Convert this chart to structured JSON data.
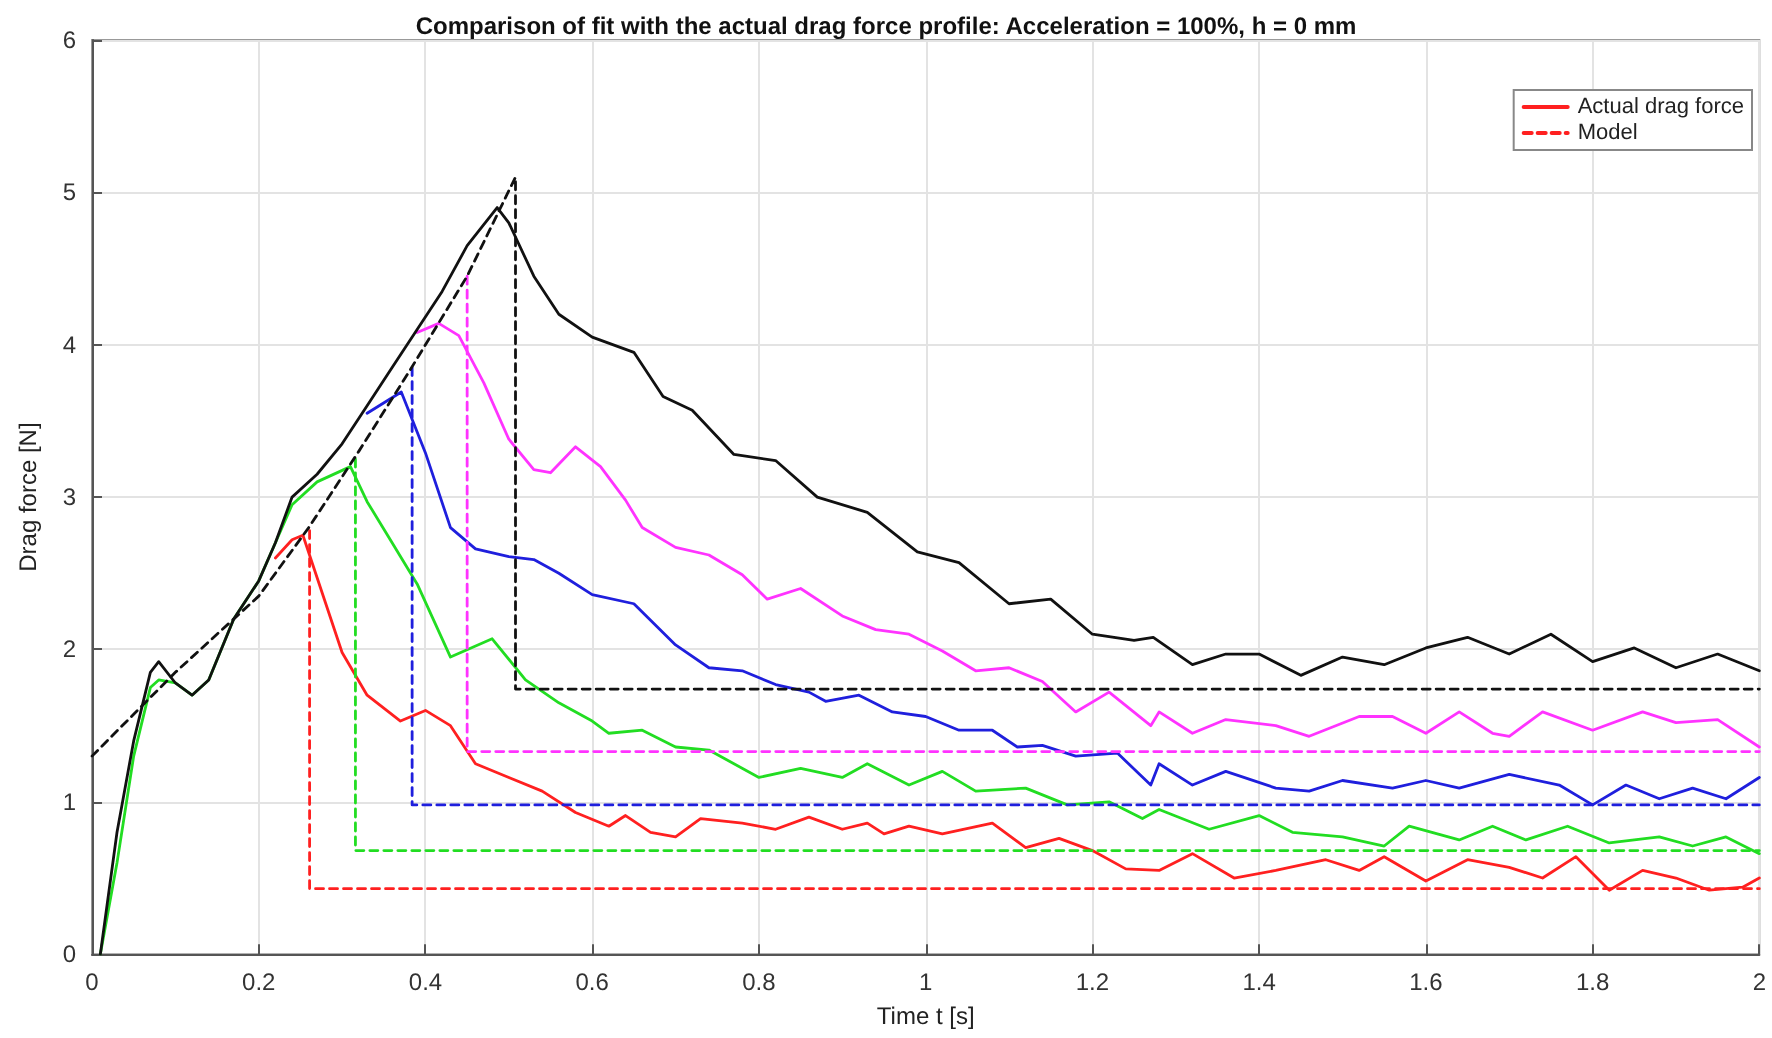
{
  "chart_data": {
    "type": "line",
    "title": "Comparison of fit with the actual drag force profile: Acceleration = 100%, h = 0 mm",
    "xlabel": "Time t [s]",
    "ylabel": "Drag force [N]",
    "xlim": [
      0,
      2
    ],
    "xticks": [
      0,
      0.2,
      0.4,
      0.6,
      0.8,
      1,
      1.2,
      1.4,
      1.6,
      1.8,
      2
    ],
    "ylim": [
      0,
      6
    ],
    "yticks": [
      0,
      1,
      2,
      3,
      4,
      5,
      6
    ],
    "grid": true,
    "legend": "top right",
    "marker": "none",
    "series": [
      {
        "name": "Actual drag force",
        "color": "#ff2020",
        "line_style": "solid",
        "x": [
          0.22,
          0.24,
          0.253,
          0.3,
          0.33,
          0.37,
          0.4,
          0.43,
          0.46,
          0.5,
          0.54,
          0.58,
          0.62,
          0.64,
          0.67,
          0.7,
          0.73,
          0.78,
          0.82,
          0.86,
          0.9,
          0.93,
          0.95,
          0.98,
          1.02,
          1.08,
          1.12,
          1.16,
          1.2,
          1.24,
          1.28,
          1.32,
          1.37,
          1.42,
          1.48,
          1.52,
          1.55,
          1.6,
          1.65,
          1.7,
          1.74,
          1.78,
          1.82,
          1.86,
          1.9,
          1.94,
          1.98,
          2.0
        ],
        "values": [
          2.6,
          2.72,
          2.75,
          1.98,
          1.7,
          1.53,
          1.6,
          1.5,
          1.25,
          1.16,
          1.07,
          0.93,
          0.84,
          0.91,
          0.8,
          0.77,
          0.89,
          0.86,
          0.82,
          0.9,
          0.82,
          0.86,
          0.79,
          0.84,
          0.79,
          0.86,
          0.7,
          0.76,
          0.68,
          0.56,
          0.55,
          0.66,
          0.5,
          0.55,
          0.62,
          0.55,
          0.64,
          0.48,
          0.62,
          0.57,
          0.5,
          0.64,
          0.42,
          0.55,
          0.5,
          0.42,
          0.44,
          0.5
        ]
      },
      {
        "name": "Model",
        "color": "#ff2020",
        "line_style": "dashed",
        "x": [
          0.261,
          0.261,
          2
        ],
        "values": [
          2.78,
          0.43,
          0.43
        ]
      },
      {
        "color": "#22dd22",
        "line_style": "solid",
        "x": [
          0.01,
          0.03,
          0.05,
          0.07,
          0.08,
          0.1,
          0.12,
          0.14,
          0.17,
          0.2,
          0.22,
          0.24,
          0.27,
          0.31,
          0.33,
          0.36,
          0.39,
          0.43,
          0.48,
          0.52,
          0.56,
          0.6,
          0.62,
          0.66,
          0.7,
          0.74,
          0.8,
          0.85,
          0.9,
          0.93,
          0.98,
          1.02,
          1.06,
          1.12,
          1.17,
          1.22,
          1.26,
          1.28,
          1.34,
          1.4,
          1.44,
          1.5,
          1.55,
          1.58,
          1.64,
          1.68,
          1.72,
          1.77,
          1.82,
          1.88,
          1.92,
          1.96,
          2.0
        ],
        "values": [
          0,
          0.6,
          1.3,
          1.75,
          1.8,
          1.78,
          1.7,
          1.8,
          2.2,
          2.45,
          2.7,
          2.95,
          3.1,
          3.2,
          2.97,
          2.7,
          2.43,
          1.95,
          2.07,
          1.8,
          1.65,
          1.53,
          1.45,
          1.47,
          1.36,
          1.34,
          1.16,
          1.22,
          1.16,
          1.25,
          1.11,
          1.2,
          1.07,
          1.09,
          0.98,
          1.0,
          0.89,
          0.95,
          0.82,
          0.91,
          0.8,
          0.77,
          0.71,
          0.84,
          0.75,
          0.84,
          0.75,
          0.84,
          0.73,
          0.77,
          0.71,
          0.77,
          0.66
        ]
      },
      {
        "color": "#22dd22",
        "line_style": "dashed",
        "x": [
          0.316,
          0.316,
          2
        ],
        "values": [
          3.25,
          0.68,
          0.68
        ]
      },
      {
        "color": "#1f1fdd",
        "line_style": "solid",
        "x": [
          0.33,
          0.371,
          0.4,
          0.43,
          0.46,
          0.5,
          0.53,
          0.56,
          0.6,
          0.65,
          0.7,
          0.74,
          0.78,
          0.82,
          0.86,
          0.88,
          0.92,
          0.96,
          1.0,
          1.04,
          1.08,
          1.11,
          1.14,
          1.18,
          1.23,
          1.27,
          1.28,
          1.32,
          1.36,
          1.42,
          1.46,
          1.5,
          1.56,
          1.6,
          1.64,
          1.7,
          1.76,
          1.8,
          1.84,
          1.88,
          1.92,
          1.96,
          2.0
        ],
        "values": [
          3.55,
          3.69,
          3.29,
          2.8,
          2.66,
          2.61,
          2.59,
          2.5,
          2.36,
          2.3,
          2.03,
          1.88,
          1.86,
          1.77,
          1.72,
          1.66,
          1.7,
          1.59,
          1.56,
          1.47,
          1.47,
          1.36,
          1.37,
          1.3,
          1.32,
          1.11,
          1.25,
          1.11,
          1.2,
          1.09,
          1.07,
          1.14,
          1.09,
          1.14,
          1.09,
          1.18,
          1.11,
          0.98,
          1.11,
          1.02,
          1.09,
          1.02,
          1.16
        ]
      },
      {
        "color": "#1f1fdd",
        "line_style": "dashed",
        "x": [
          0.384,
          0.384,
          2
        ],
        "values": [
          3.85,
          0.98,
          0.98
        ]
      },
      {
        "color": "#ff33ff",
        "line_style": "solid",
        "x": [
          0.39,
          0.416,
          0.44,
          0.47,
          0.5,
          0.53,
          0.55,
          0.58,
          0.61,
          0.64,
          0.66,
          0.7,
          0.74,
          0.78,
          0.81,
          0.85,
          0.9,
          0.94,
          0.98,
          1.02,
          1.06,
          1.1,
          1.14,
          1.18,
          1.22,
          1.27,
          1.28,
          1.32,
          1.36,
          1.42,
          1.46,
          1.52,
          1.56,
          1.6,
          1.64,
          1.68,
          1.7,
          1.74,
          1.8,
          1.86,
          1.9,
          1.95,
          2.0
        ],
        "values": [
          4.08,
          4.14,
          4.06,
          3.75,
          3.38,
          3.18,
          3.16,
          3.33,
          3.2,
          2.98,
          2.8,
          2.67,
          2.62,
          2.49,
          2.33,
          2.4,
          2.22,
          2.13,
          2.1,
          1.99,
          1.86,
          1.88,
          1.79,
          1.59,
          1.72,
          1.5,
          1.59,
          1.45,
          1.54,
          1.5,
          1.43,
          1.56,
          1.56,
          1.45,
          1.59,
          1.45,
          1.43,
          1.59,
          1.47,
          1.59,
          1.52,
          1.54,
          1.36
        ]
      },
      {
        "color": "#ff33ff",
        "line_style": "dashed",
        "x": [
          0.45,
          0.45,
          2
        ],
        "values": [
          4.45,
          1.33,
          1.33
        ]
      },
      {
        "color": "#111111",
        "line_style": "solid",
        "x": [
          0.01,
          0.03,
          0.05,
          0.07,
          0.08,
          0.1,
          0.12,
          0.14,
          0.17,
          0.2,
          0.22,
          0.24,
          0.27,
          0.3,
          0.33,
          0.36,
          0.39,
          0.42,
          0.45,
          0.486,
          0.5,
          0.53,
          0.56,
          0.6,
          0.65,
          0.685,
          0.72,
          0.77,
          0.82,
          0.87,
          0.93,
          0.99,
          1.04,
          1.1,
          1.15,
          1.2,
          1.25,
          1.273,
          1.32,
          1.36,
          1.4,
          1.45,
          1.5,
          1.55,
          1.6,
          1.65,
          1.7,
          1.75,
          1.8,
          1.85,
          1.9,
          1.95,
          2.0
        ],
        "values": [
          0,
          0.8,
          1.4,
          1.85,
          1.92,
          1.78,
          1.7,
          1.8,
          2.2,
          2.45,
          2.7,
          3.0,
          3.15,
          3.35,
          3.6,
          3.85,
          4.1,
          4.35,
          4.65,
          4.9,
          4.8,
          4.45,
          4.2,
          4.05,
          3.95,
          3.66,
          3.57,
          3.28,
          3.24,
          3.0,
          2.9,
          2.64,
          2.57,
          2.3,
          2.33,
          2.1,
          2.06,
          2.08,
          1.9,
          1.97,
          1.97,
          1.83,
          1.95,
          1.9,
          2.01,
          2.08,
          1.97,
          2.1,
          1.92,
          2.01,
          1.88,
          1.97,
          1.86
        ]
      },
      {
        "color": "#111111",
        "line_style": "dashed",
        "x": [
          0,
          0.1,
          0.2,
          0.26,
          0.32,
          0.38,
          0.45,
          0.508,
          0.508,
          2
        ],
        "values": [
          1.3,
          1.85,
          2.35,
          2.8,
          3.3,
          3.82,
          4.45,
          5.1,
          1.74,
          1.74
        ]
      }
    ]
  }
}
